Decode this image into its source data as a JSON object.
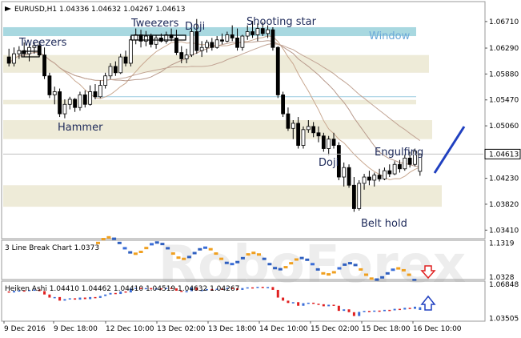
{
  "chart_data": [
    {
      "type": "candlestick",
      "header": "EURUSD,H1  1.04336 1.04632 1.04267 1.04613",
      "y_ticks": [
        "1.06710",
        "1.06290",
        "1.05880",
        "1.05470",
        "1.05060",
        "1.04613",
        "1.04230",
        "1.03820",
        "1.03410"
      ],
      "ylim": [
        1.033,
        1.07
      ],
      "current_price": 1.04613,
      "annotations": [
        "Tweezers",
        "Tweezers",
        "Doji",
        "Shooting star",
        "Window",
        "Hammer",
        "Doji",
        "Engulfing",
        "Belt hold"
      ],
      "candles": [
        [
          1.0615,
          1.0628,
          1.06,
          1.0605
        ],
        [
          1.0605,
          1.063,
          1.06,
          1.062
        ],
        [
          1.062,
          1.0632,
          1.0612,
          1.0625
        ],
        [
          1.0625,
          1.0638,
          1.0615,
          1.062
        ],
        [
          1.062,
          1.0635,
          1.0608,
          1.063
        ],
        [
          1.063,
          1.0638,
          1.062,
          1.0633
        ],
        [
          1.0633,
          1.064,
          1.0615,
          1.0618
        ],
        [
          1.0618,
          1.063,
          1.058,
          1.0585
        ],
        [
          1.0585,
          1.059,
          1.055,
          1.0555
        ],
        [
          1.0555,
          1.0568,
          1.054,
          1.056
        ],
        [
          1.056,
          1.0565,
          1.052,
          1.0525
        ],
        [
          1.0525,
          1.0548,
          1.0518,
          1.054
        ],
        [
          1.054,
          1.0552,
          1.0532,
          1.0548
        ],
        [
          1.0548,
          1.055,
          1.0528,
          1.0535
        ],
        [
          1.0535,
          1.056,
          1.053,
          1.0555
        ],
        [
          1.0555,
          1.0562,
          1.0535,
          1.054
        ],
        [
          1.054,
          1.057,
          1.0538,
          1.056
        ],
        [
          1.056,
          1.0572,
          1.0548,
          1.0552
        ],
        [
          1.0552,
          1.0578,
          1.055,
          1.057
        ],
        [
          1.057,
          1.059,
          1.0565,
          1.0585
        ],
        [
          1.0585,
          1.0605,
          1.058,
          1.06
        ],
        [
          1.06,
          1.0608,
          1.0585,
          1.059
        ],
        [
          1.059,
          1.062,
          1.0588,
          1.0615
        ],
        [
          1.0615,
          1.0625,
          1.06,
          1.0605
        ],
        [
          1.0605,
          1.0648,
          1.06,
          1.0642
        ],
        [
          1.0642,
          1.066,
          1.0635,
          1.065
        ],
        [
          1.065,
          1.0658,
          1.063,
          1.064
        ],
        [
          1.064,
          1.0656,
          1.0632,
          1.0648
        ],
        [
          1.0648,
          1.0652,
          1.063,
          1.0635
        ],
        [
          1.0635,
          1.065,
          1.0628,
          1.0645
        ],
        [
          1.0645,
          1.0652,
          1.0638,
          1.064
        ],
        [
          1.064,
          1.0655,
          1.0636,
          1.065
        ],
        [
          1.065,
          1.066,
          1.064,
          1.0645
        ],
        [
          1.0645,
          1.0658,
          1.0618,
          1.0622
        ],
        [
          1.0622,
          1.0632,
          1.0605,
          1.0612
        ],
        [
          1.0612,
          1.0628,
          1.0605,
          1.0618
        ],
        [
          1.0618,
          1.066,
          1.0615,
          1.0655
        ],
        [
          1.0655,
          1.0675,
          1.062,
          1.0625
        ],
        [
          1.0625,
          1.064,
          1.0615,
          1.063
        ],
        [
          1.063,
          1.0642,
          1.0622,
          1.0638
        ],
        [
          1.0638,
          1.0645,
          1.0625,
          1.063
        ],
        [
          1.063,
          1.0648,
          1.0628,
          1.0642
        ],
        [
          1.0642,
          1.0652,
          1.0635,
          1.064
        ],
        [
          1.064,
          1.0655,
          1.0638,
          1.065
        ],
        [
          1.065,
          1.0665,
          1.064,
          1.0645
        ],
        [
          1.0645,
          1.066,
          1.0625,
          1.063
        ],
        [
          1.063,
          1.065,
          1.0625,
          1.0648
        ],
        [
          1.0648,
          1.0665,
          1.0642,
          1.0655
        ],
        [
          1.0655,
          1.0672,
          1.0645,
          1.065
        ],
        [
          1.065,
          1.0668,
          1.064,
          1.066
        ],
        [
          1.066,
          1.067,
          1.0648,
          1.0652
        ],
        [
          1.0652,
          1.0665,
          1.0645,
          1.0658
        ],
        [
          1.0658,
          1.0662,
          1.0625,
          1.063
        ],
        [
          1.063,
          1.0632,
          1.055,
          1.0555
        ],
        [
          1.0555,
          1.056,
          1.052,
          1.0525
        ],
        [
          1.0525,
          1.0535,
          1.0498,
          1.0502
        ],
        [
          1.0502,
          1.0515,
          1.0485,
          1.051
        ],
        [
          1.051,
          1.052,
          1.047,
          1.0475
        ],
        [
          1.0475,
          1.0505,
          1.047,
          1.05
        ],
        [
          1.05,
          1.0515,
          1.0495,
          1.0505
        ],
        [
          1.0505,
          1.0512,
          1.0488,
          1.0495
        ],
        [
          1.0495,
          1.0505,
          1.048,
          1.049
        ],
        [
          1.049,
          1.0495,
          1.0465,
          1.047
        ],
        [
          1.047,
          1.049,
          1.046,
          1.0485
        ],
        [
          1.0485,
          1.0495,
          1.047,
          1.0475
        ],
        [
          1.0475,
          1.048,
          1.042,
          1.0425
        ],
        [
          1.0425,
          1.0448,
          1.041,
          1.044
        ],
        [
          1.044,
          1.0445,
          1.0408,
          1.0412
        ],
        [
          1.0412,
          1.0425,
          1.037,
          1.0375
        ],
        [
          1.0375,
          1.042,
          1.0372,
          1.0415
        ],
        [
          1.0415,
          1.043,
          1.0405,
          1.0425
        ],
        [
          1.0425,
          1.0435,
          1.0412,
          1.042
        ],
        [
          1.042,
          1.0432,
          1.041,
          1.0428
        ],
        [
          1.0428,
          1.0438,
          1.0418,
          1.0422
        ],
        [
          1.0422,
          1.044,
          1.042,
          1.0435
        ],
        [
          1.0435,
          1.0445,
          1.0425,
          1.043
        ],
        [
          1.043,
          1.045,
          1.0428,
          1.0445
        ],
        [
          1.0445,
          1.0452,
          1.0432,
          1.0438
        ],
        [
          1.0438,
          1.046,
          1.0435,
          1.0455
        ],
        [
          1.0455,
          1.0465,
          1.044,
          1.0445
        ],
        [
          1.0445,
          1.047,
          1.0442,
          1.0466
        ],
        [
          1.0434,
          1.0463,
          1.0427,
          1.0461
        ]
      ],
      "zones": [
        {
          "y1": 1.0662,
          "y2": 1.0648,
          "color": "#a8d8e0"
        },
        {
          "y1": 1.0618,
          "y2": 1.059,
          "color": "#eeebd8"
        },
        {
          "y1": 1.0547,
          "y2": 1.054,
          "color": "#eeebd8"
        },
        {
          "y1": 1.0515,
          "y2": 1.0485,
          "color": "#eeebd8"
        },
        {
          "y1": 1.0412,
          "y2": 1.0378,
          "color": "#eeebd8"
        }
      ],
      "x_ticks": [
        "9 Dec 2016",
        "9 Dec 18:00",
        "12 Dec 10:00",
        "13 Dec 02:00",
        "13 Dec 18:00",
        "14 Dec 10:00",
        "15 Dec 02:00",
        "15 Dec 18:00",
        "16 Dec 10:00"
      ]
    },
    {
      "type": "line",
      "header": "3 Line Break Chart 1.0373",
      "y_ticks": [
        "1.1319",
        "1.0328"
      ],
      "ylim": [
        1.03,
        1.135
      ]
    },
    {
      "type": "bar",
      "header": "Heiken Ashi 1.04410 1.04462 1.04410 1.04519 1.04632 1.04267",
      "y_ticks": [
        "1.06848",
        "1.03505"
      ],
      "ylim": [
        1.034,
        1.07
      ]
    }
  ],
  "watermark": "RoboForex",
  "colors": {
    "bull": "#3a6dd8",
    "bear": "#e02020",
    "orange": "#f0a020",
    "accent": "#2040c0"
  },
  "indicators": {
    "down_arrow": "red-down-arrow-icon",
    "up_arrow": "blue-up-arrow-icon"
  }
}
